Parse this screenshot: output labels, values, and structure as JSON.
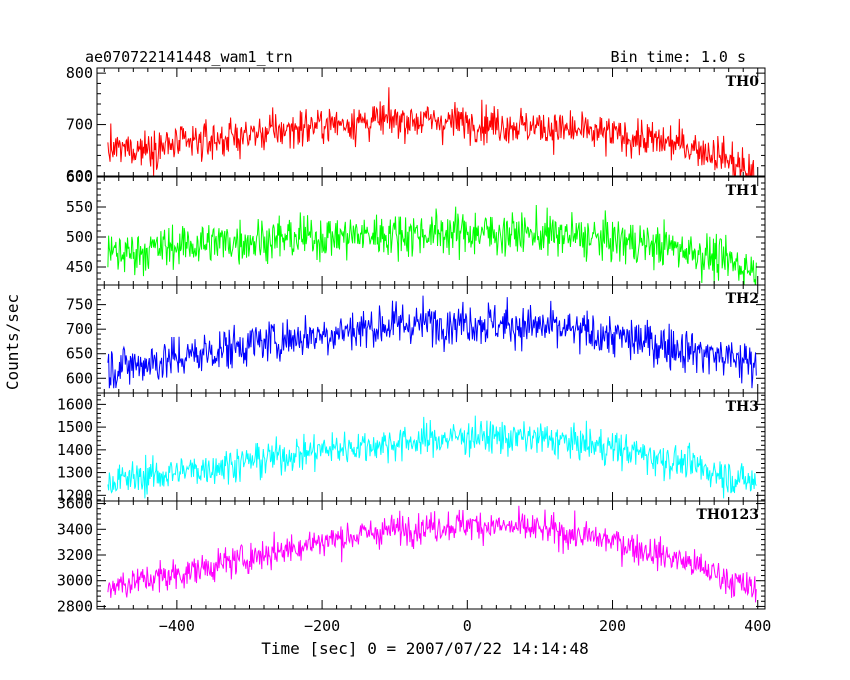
{
  "chart_data": {
    "type": "line",
    "title": "ae070722141448_wam1_trn",
    "bin_time_label": "Bin time: 1.0 s",
    "xlabel": "Time [sec] 0 = 2007/07/22 14:14:48",
    "ylabel": "Counts/sec",
    "xlim": [
      -510,
      410
    ],
    "x_ticks": [
      -400,
      -200,
      0,
      200,
      400
    ],
    "x_tick_labels": [
      "−400",
      "−200",
      "0",
      "200",
      "400"
    ],
    "x_data_range": [
      -495,
      398
    ],
    "grid": false,
    "panels": [
      {
        "name": "TH0",
        "color": "#ff0000",
        "ylim": [
          600,
          810
        ],
        "y_ticks": [
          600,
          700,
          800
        ],
        "y_tick_labels": [
          "600",
          "700",
          "800"
        ],
        "minor_step": 20,
        "noise": 18,
        "trend": [
          [
            -495,
            650
          ],
          [
            -400,
            660
          ],
          [
            -300,
            680
          ],
          [
            -200,
            700
          ],
          [
            -100,
            710
          ],
          [
            0,
            705
          ],
          [
            100,
            695
          ],
          [
            200,
            680
          ],
          [
            300,
            660
          ],
          [
            350,
            640
          ],
          [
            398,
            600
          ]
        ]
      },
      {
        "name": "TH1",
        "color": "#00ff00",
        "ylim": [
          420,
          600
        ],
        "y_ticks": [
          450,
          500,
          550,
          600
        ],
        "y_tick_labels": [
          "450",
          "500",
          "550",
          "600"
        ],
        "minor_step": 10,
        "noise": 18,
        "trend": [
          [
            -495,
            470
          ],
          [
            -400,
            485
          ],
          [
            -300,
            495
          ],
          [
            -200,
            500
          ],
          [
            -100,
            505
          ],
          [
            0,
            508
          ],
          [
            100,
            505
          ],
          [
            200,
            495
          ],
          [
            300,
            480
          ],
          [
            398,
            445
          ]
        ]
      },
      {
        "name": "TH2",
        "color": "#0000ff",
        "ylim": [
          570,
          790
        ],
        "y_ticks": [
          600,
          650,
          700,
          750
        ],
        "y_tick_labels": [
          "600",
          "650",
          "700",
          "750"
        ],
        "minor_step": 10,
        "noise": 22,
        "trend": [
          [
            -495,
            620
          ],
          [
            -400,
            640
          ],
          [
            -300,
            670
          ],
          [
            -200,
            690
          ],
          [
            -100,
            710
          ],
          [
            0,
            715
          ],
          [
            100,
            705
          ],
          [
            200,
            685
          ],
          [
            300,
            660
          ],
          [
            398,
            630
          ]
        ]
      },
      {
        "name": "TH3",
        "color": "#00ffff",
        "ylim": [
          1175,
          1650
        ],
        "y_ticks": [
          1200,
          1300,
          1400,
          1500,
          1600
        ],
        "y_tick_labels": [
          "1200",
          "1300",
          "1400",
          "1500",
          "1600"
        ],
        "minor_step": 20,
        "noise": 38,
        "trend": [
          [
            -495,
            1260
          ],
          [
            -400,
            1300
          ],
          [
            -300,
            1350
          ],
          [
            -200,
            1400
          ],
          [
            -100,
            1430
          ],
          [
            0,
            1460
          ],
          [
            100,
            1450
          ],
          [
            200,
            1410
          ],
          [
            300,
            1340
          ],
          [
            398,
            1250
          ]
        ]
      },
      {
        "name": "TH0123",
        "color": "#ff00ff",
        "ylim": [
          2780,
          3620
        ],
        "y_ticks": [
          2800,
          3000,
          3200,
          3400,
          3600
        ],
        "y_tick_labels": [
          "2800",
          "3000",
          "3200",
          "3400",
          "3600"
        ],
        "minor_step": 40,
        "noise": 60,
        "trend": [
          [
            -495,
            2960
          ],
          [
            -400,
            3050
          ],
          [
            -300,
            3180
          ],
          [
            -200,
            3310
          ],
          [
            -100,
            3400
          ],
          [
            0,
            3440
          ],
          [
            100,
            3400
          ],
          [
            200,
            3310
          ],
          [
            300,
            3150
          ],
          [
            398,
            2920
          ]
        ]
      }
    ]
  }
}
